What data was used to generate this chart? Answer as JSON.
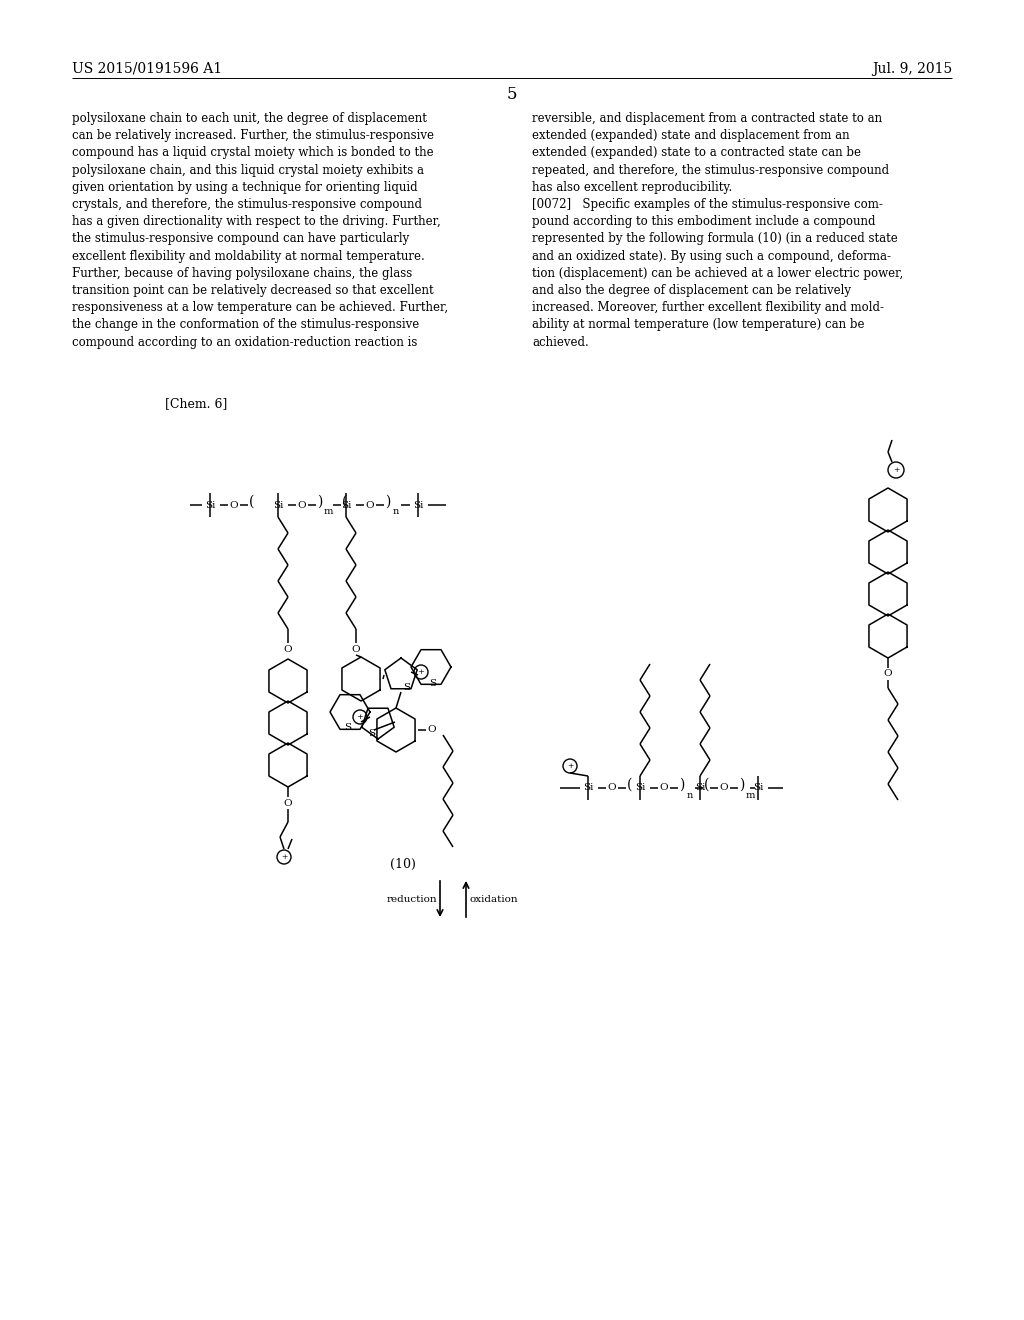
{
  "background_color": "#ffffff",
  "header_left": "US 2015/0191596 A1",
  "header_right": "Jul. 9, 2015",
  "page_number": "5",
  "chem_label": "[Chem. 6]",
  "formula_label": "(10)",
  "reduction_label": "reduction",
  "oxidation_label": "oxidation",
  "body_text_left": "polysiloxane chain to each unit, the degree of displacement\ncan be relatively increased. Further, the stimulus-responsive\ncompound has a liquid crystal moiety which is bonded to the\npolysiloxane chain, and this liquid crystal moiety exhibits a\ngiven orientation by using a technique for orienting liquid\ncrystals, and therefore, the stimulus-responsive compound\nhas a given directionality with respect to the driving. Further,\nthe stimulus-responsive compound can have particularly\nexcellent flexibility and moldability at normal temperature.\nFurther, because of having polysiloxane chains, the glass\ntransition point can be relatively decreased so that excellent\nresponsiveness at a low temperature can be achieved. Further,\nthe change in the conformation of the stimulus-responsive\ncompound according to an oxidation-reduction reaction is",
  "body_text_right": "reversible, and displacement from a contracted state to an\nextended (expanded) state and displacement from an\nextended (expanded) state to a contracted state can be\nrepeated, and therefore, the stimulus-responsive compound\nhas also excellent reproducibility.\n[0072]   Specific examples of the stimulus-responsive com-\npound according to this embodiment include a compound\nrepresented by the following formula (10) (in a reduced state\nand an oxidized state). By using such a compound, deforma-\ntion (displacement) can be achieved at a lower electric power,\nand also the degree of displacement can be relatively\nincreased. Moreover, further excellent flexibility and mold-\nability at normal temperature (low temperature) can be\nachieved.",
  "font_size_header": 10,
  "font_size_body": 8.5,
  "font_size_page_num": 12,
  "font_size_chem": 9,
  "text_color": "#000000"
}
